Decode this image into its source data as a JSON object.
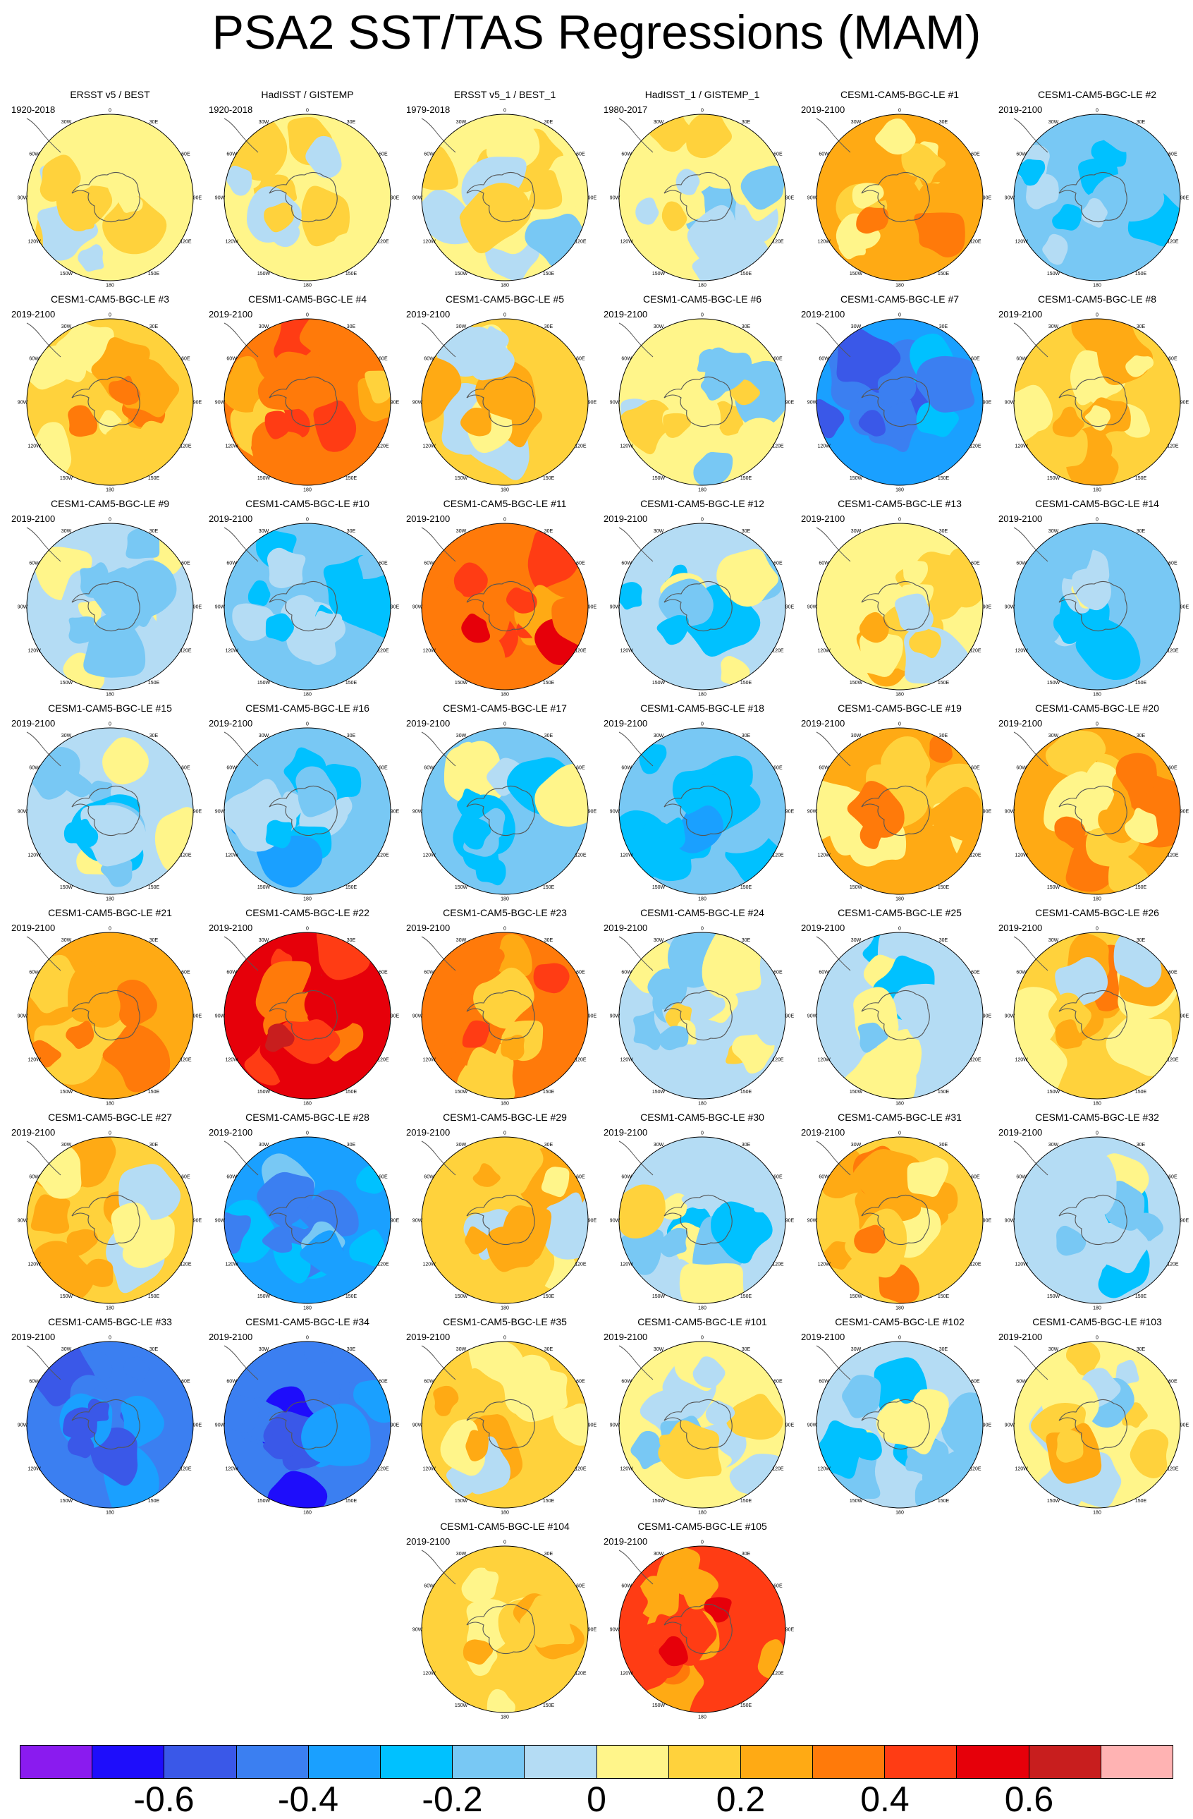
{
  "title": "PSA2 SST/TAS Regressions (MAM)",
  "lon_labels": [
    "0",
    "30E",
    "60E",
    "90E",
    "120E",
    "150E",
    "180",
    "150W",
    "120W",
    "90W",
    "60W",
    "30W"
  ],
  "colorbar": {
    "colors": [
      "#8a1bef",
      "#1e0dfb",
      "#3a58e8",
      "#3b7ff1",
      "#1aa0ff",
      "#00c1ff",
      "#78c8f4",
      "#b4dcf4",
      "#fff58a",
      "#ffd23c",
      "#ffaa14",
      "#ff7a0a",
      "#ff3c14",
      "#e6000a",
      "#c81e1e",
      "#ffb3b3"
    ],
    "tick_labels": [
      "-0.6",
      "-0.4",
      "-0.2",
      "0",
      "0.2",
      "0.4",
      "0.6"
    ]
  },
  "panels": [
    {
      "title": "ERSST v5 / BEST",
      "period": "1920-2018",
      "tone": 0.02
    },
    {
      "title": "HadISST / GISTEMP",
      "period": "1920-2018",
      "tone": 0.04
    },
    {
      "title": "ERSST v5_1 / BEST_1",
      "period": "1979-2018",
      "tone": 0.02
    },
    {
      "title": "HadISST_1 / GISTEMP_1",
      "period": "1980-2017",
      "tone": 0.03
    },
    {
      "title": "CESM1-CAM5-BGC-LE #1",
      "period": "2019-2100",
      "tone": 0.2
    },
    {
      "title": "CESM1-CAM5-BGC-LE #2",
      "period": "2019-2100",
      "tone": -0.16
    },
    {
      "title": "CESM1-CAM5-BGC-LE #3",
      "period": "2019-2100",
      "tone": 0.18
    },
    {
      "title": "CESM1-CAM5-BGC-LE #4",
      "period": "2019-2100",
      "tone": 0.32
    },
    {
      "title": "CESM1-CAM5-BGC-LE #5",
      "period": "2019-2100",
      "tone": 0.12
    },
    {
      "title": "CESM1-CAM5-BGC-LE #6",
      "period": "2019-2100",
      "tone": 0.02
    },
    {
      "title": "CESM1-CAM5-BGC-LE #7",
      "period": "2019-2100",
      "tone": -0.4
    },
    {
      "title": "CESM1-CAM5-BGC-LE #8",
      "period": "2019-2100",
      "tone": 0.14
    },
    {
      "title": "CESM1-CAM5-BGC-LE #9",
      "period": "2019-2100",
      "tone": -0.02
    },
    {
      "title": "CESM1-CAM5-BGC-LE #10",
      "period": "2019-2100",
      "tone": -0.12
    },
    {
      "title": "CESM1-CAM5-BGC-LE #11",
      "period": "2019-2100",
      "tone": 0.38
    },
    {
      "title": "CESM1-CAM5-BGC-LE #12",
      "period": "2019-2100",
      "tone": -0.1
    },
    {
      "title": "CESM1-CAM5-BGC-LE #13",
      "period": "2019-2100",
      "tone": 0.08
    },
    {
      "title": "CESM1-CAM5-BGC-LE #14",
      "period": "2019-2100",
      "tone": -0.14
    },
    {
      "title": "CESM1-CAM5-BGC-LE #15",
      "period": "2019-2100",
      "tone": -0.1
    },
    {
      "title": "CESM1-CAM5-BGC-LE #16",
      "period": "2019-2100",
      "tone": -0.18
    },
    {
      "title": "CESM1-CAM5-BGC-LE #17",
      "period": "2019-2100",
      "tone": -0.12
    },
    {
      "title": "CESM1-CAM5-BGC-LE #18",
      "period": "2019-2100",
      "tone": -0.16
    },
    {
      "title": "CESM1-CAM5-BGC-LE #19",
      "period": "2019-2100",
      "tone": 0.22
    },
    {
      "title": "CESM1-CAM5-BGC-LE #20",
      "period": "2019-2100",
      "tone": 0.2
    },
    {
      "title": "CESM1-CAM5-BGC-LE #21",
      "period": "2019-2100",
      "tone": 0.26
    },
    {
      "title": "CESM1-CAM5-BGC-LE #22",
      "period": "2019-2100",
      "tone": 0.5
    },
    {
      "title": "CESM1-CAM5-BGC-LE #23",
      "period": "2019-2100",
      "tone": 0.3
    },
    {
      "title": "CESM1-CAM5-BGC-LE #24",
      "period": "2019-2100",
      "tone": -0.06
    },
    {
      "title": "CESM1-CAM5-BGC-LE #25",
      "period": "2019-2100",
      "tone": -0.06
    },
    {
      "title": "CESM1-CAM5-BGC-LE #26",
      "period": "2019-2100",
      "tone": 0.14
    },
    {
      "title": "CESM1-CAM5-BGC-LE #27",
      "period": "2019-2100",
      "tone": 0.14
    },
    {
      "title": "CESM1-CAM5-BGC-LE #28",
      "period": "2019-2100",
      "tone": -0.32
    },
    {
      "title": "CESM1-CAM5-BGC-LE #29",
      "period": "2019-2100",
      "tone": 0.1
    },
    {
      "title": "CESM1-CAM5-BGC-LE #30",
      "period": "2019-2100",
      "tone": -0.06
    },
    {
      "title": "CESM1-CAM5-BGC-LE #31",
      "period": "2019-2100",
      "tone": 0.18
    },
    {
      "title": "CESM1-CAM5-BGC-LE #32",
      "period": "2019-2100",
      "tone": -0.08
    },
    {
      "title": "CESM1-CAM5-BGC-LE #33",
      "period": "2019-2100",
      "tone": -0.42
    },
    {
      "title": "CESM1-CAM5-BGC-LE #34",
      "period": "2019-2100",
      "tone": -0.46
    },
    {
      "title": "CESM1-CAM5-BGC-LE #35",
      "period": "2019-2100",
      "tone": 0.14
    },
    {
      "title": "CESM1-CAM5-BGC-LE #101",
      "period": "2019-2100",
      "tone": 0.04
    },
    {
      "title": "CESM1-CAM5-BGC-LE #102",
      "period": "2019-2100",
      "tone": -0.1
    },
    {
      "title": "CESM1-CAM5-BGC-LE #103",
      "period": "2019-2100",
      "tone": 0.06
    },
    {
      "title": "CESM1-CAM5-BGC-LE #104",
      "period": "2019-2100",
      "tone": 0.16
    },
    {
      "title": "CESM1-CAM5-BGC-LE #105",
      "period": "2019-2100",
      "tone": 0.4
    }
  ]
}
